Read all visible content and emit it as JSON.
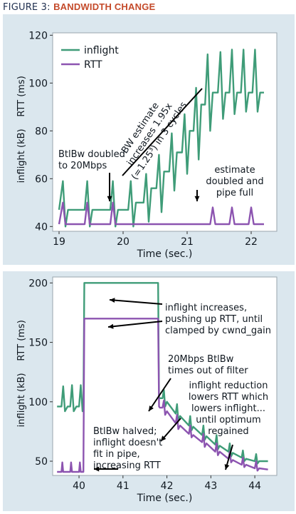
{
  "figure": {
    "label": "FIGURE 3:",
    "title": "BANDWIDTH CHANGE"
  },
  "colors": {
    "inflight": "#3f9c78",
    "rtt": "#8c54b0",
    "panel_bg": "#dbe7ee",
    "title_accent": "#c44a2a"
  },
  "chart_data": [
    {
      "type": "line",
      "xlabel": "Time (sec.)",
      "ylabel_left": "inflight (kB)",
      "ylabel_right": "RTT (ms)",
      "xlim": [
        18.9,
        22.4
      ],
      "ylim": [
        38,
        121
      ],
      "xticks": [
        "19",
        "20",
        "21",
        "22"
      ],
      "yticks": [
        "40",
        "60",
        "80",
        "100",
        "120"
      ],
      "legend": {
        "position": "top-left",
        "entries": [
          "inflight",
          "RTT"
        ]
      },
      "annotations": {
        "btlbw": [
          "BtlBw doubled",
          "to 20Mbps"
        ],
        "estimate_line": [
          "BW estimate",
          "increases 1.95x",
          "(=1.25³) in 3 cycles"
        ],
        "pipe_full": [
          "estimate",
          "doubled and",
          "pipe full"
        ]
      },
      "series": [
        {
          "name": "inflight",
          "x": [
            19.0,
            19.06,
            19.1,
            19.14,
            19.2,
            19.4,
            19.44,
            19.48,
            19.52,
            19.6,
            19.8,
            19.84,
            19.88,
            19.92,
            20.0,
            20.08,
            20.12,
            20.16,
            20.2,
            20.32,
            20.36,
            20.4,
            20.44,
            20.52,
            20.56,
            20.6,
            20.64,
            20.72,
            20.76,
            20.8,
            20.84,
            20.92,
            20.96,
            21.0,
            21.04,
            21.1,
            21.14,
            21.18,
            21.22,
            21.28,
            21.32,
            21.36,
            21.4,
            21.48,
            21.52,
            21.56,
            21.6,
            21.66,
            21.7,
            21.74,
            21.78,
            21.84,
            21.88,
            21.92,
            21.96,
            22.02,
            22.06,
            22.1,
            22.14,
            22.2
          ],
          "values": [
            47,
            59,
            40,
            47,
            47,
            47,
            59,
            40,
            47,
            47,
            47,
            59,
            40,
            47,
            47,
            47,
            59,
            40,
            50,
            50,
            62,
            42,
            56,
            56,
            70,
            46,
            63,
            63,
            79,
            55,
            71,
            71,
            87,
            62,
            80,
            80,
            98,
            68,
            91,
            91,
            112,
            80,
            96,
            96,
            113,
            85,
            96,
            96,
            114,
            87,
            96,
            96,
            114,
            88,
            96,
            96,
            114,
            88,
            96,
            96
          ]
        },
        {
          "name": "RTT",
          "x": [
            19.0,
            19.06,
            19.1,
            19.2,
            19.4,
            19.44,
            19.48,
            19.52,
            19.8,
            19.84,
            19.88,
            19.92,
            20.0,
            21.36,
            21.4,
            21.44,
            21.66,
            21.7,
            21.74,
            21.96,
            22.0,
            22.04,
            22.2
          ],
          "values": [
            41,
            50,
            41,
            41,
            41,
            50,
            41,
            41,
            41,
            50,
            41,
            41,
            41,
            41,
            48,
            41,
            41,
            48,
            41,
            41,
            48,
            41,
            41
          ]
        }
      ]
    },
    {
      "type": "line",
      "xlabel": "Time (sec.)",
      "ylabel_left": "inflight (kB)",
      "ylabel_right": "RTT (ms)",
      "xlim": [
        39.4,
        44.5
      ],
      "ylim": [
        38,
        205
      ],
      "xticks": [
        "40",
        "41",
        "42",
        "43",
        "44"
      ],
      "yticks": [
        "50",
        "100",
        "150",
        "200"
      ],
      "annotations": {
        "increase": [
          "inflight increases,",
          "pushing up RTT, until",
          "clamped by cwnd_gain"
        ],
        "filter": [
          "20Mbps BtlBw",
          "times out of filter"
        ],
        "reduction": [
          "inflight reduction",
          "lowers RTT which",
          "lowers inflight...",
          "until optimum",
          "regained"
        ],
        "halved": [
          "BtlBw halved;",
          "inflight doesn't",
          "fit in pipe,",
          "increasing RTT"
        ]
      },
      "series": [
        {
          "name": "inflight",
          "x": [
            39.5,
            39.6,
            39.64,
            39.68,
            39.74,
            39.8,
            39.84,
            39.88,
            39.94,
            40.0,
            40.04,
            40.08,
            40.1,
            40.12,
            40.14,
            41.76,
            41.8,
            41.82,
            41.84,
            41.9,
            41.93,
            41.96,
            42.0,
            42.2,
            42.23,
            42.26,
            42.3,
            42.5,
            42.53,
            42.56,
            42.6,
            42.8,
            42.83,
            42.86,
            42.9,
            43.1,
            43.13,
            43.16,
            43.2,
            43.4,
            43.43,
            43.46,
            43.5,
            43.7,
            43.73,
            43.76,
            43.8,
            44.0,
            44.03,
            44.06,
            44.1,
            44.3
          ],
          "values": [
            96,
            96,
            113,
            92,
            96,
            96,
            114,
            92,
            96,
            96,
            114,
            92,
            96,
            200,
            200,
            200,
            200,
            104,
            103,
            103,
            110,
            96,
            100,
            90,
            98,
            84,
            88,
            80,
            88,
            76,
            79,
            72,
            80,
            68,
            71,
            64,
            72,
            60,
            63,
            58,
            65,
            54,
            57,
            53,
            59,
            50,
            52,
            50,
            56,
            48,
            50,
            50
          ]
        },
        {
          "name": "RTT",
          "x": [
            39.5,
            39.6,
            39.62,
            39.64,
            39.8,
            39.82,
            39.84,
            40.0,
            40.02,
            40.04,
            40.1,
            40.12,
            40.14,
            41.8,
            41.82,
            41.84,
            41.9,
            41.93,
            41.96,
            42.0,
            42.2,
            42.23,
            42.26,
            42.3,
            42.5,
            42.53,
            42.56,
            42.6,
            42.8,
            42.83,
            42.86,
            42.9,
            43.1,
            43.13,
            43.16,
            43.2,
            43.4,
            43.43,
            43.46,
            43.5,
            43.7,
            43.73,
            43.76,
            43.8,
            44.0,
            44.03,
            44.06,
            44.1,
            44.3
          ],
          "values": [
            41,
            41,
            49,
            41,
            41,
            49,
            41,
            41,
            49,
            41,
            41,
            170,
            170,
            170,
            96,
            95,
            95,
            101,
            89,
            92,
            82,
            89,
            77,
            80,
            73,
            80,
            70,
            72,
            66,
            73,
            62,
            65,
            58,
            65,
            55,
            58,
            52,
            58,
            49,
            51,
            47,
            53,
            45,
            47,
            44,
            50,
            42,
            44,
            43
          ]
        }
      ]
    }
  ]
}
